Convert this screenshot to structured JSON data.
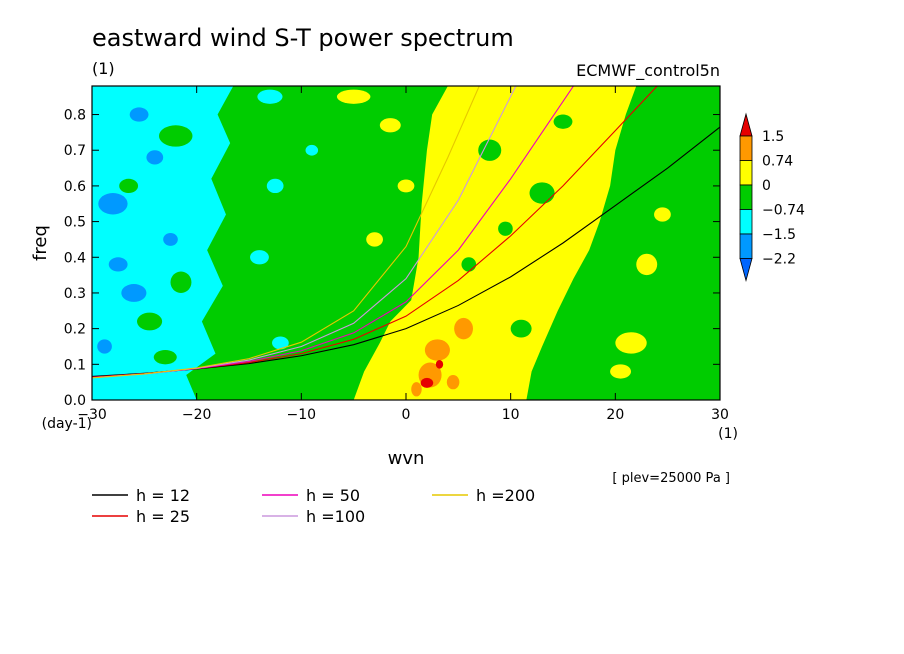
{
  "chart_data": {
    "type": "heatmap",
    "title": "eastward wind S-T power spectrum",
    "subtitle": "(1)",
    "source_label": "ECMWF_control5n",
    "xlabel": "wvn",
    "ylabel": "freq",
    "x_unit": "(1)",
    "y_unit": "(day-1)",
    "xlim": [
      -30,
      30
    ],
    "ylim": [
      0,
      0.88
    ],
    "x_ticks": [
      -30,
      -20,
      -10,
      0,
      10,
      20,
      30
    ],
    "y_ticks": [
      0.0,
      0.1,
      0.2,
      0.3,
      0.4,
      0.5,
      0.6,
      0.7,
      0.8
    ],
    "x_tick_labels": [
      "-30",
      "-20",
      "-10",
      "0",
      "10",
      "20",
      "30"
    ],
    "y_tick_labels": [
      "0.0",
      "0.1",
      "0.2",
      "0.3",
      "0.4",
      "0.5",
      "0.6",
      "0.7",
      "0.8"
    ],
    "colorbar": {
      "levels": [
        "1.5",
        "0.74",
        "0",
        "-0.74",
        "-1.5",
        "-2.2"
      ],
      "colors": [
        "#e60000",
        "#ff9900",
        "#ffff00",
        "#00cc00",
        "#00ffff",
        "#0099ff",
        "#0066ff"
      ]
    },
    "field_regions": [
      {
        "level": "-1.5",
        "color": "#00ffff",
        "x_range": [
          -30,
          -17.5
        ],
        "y_range": [
          0,
          0.88
        ]
      },
      {
        "level": "-0.74",
        "color": "#00cc00",
        "x_range": [
          -17.5,
          -3
        ],
        "y_range": [
          0,
          0.88
        ]
      },
      {
        "level": "0",
        "color": "#ffff00",
        "x_range": [
          -3,
          24
        ],
        "y_range": [
          0,
          0.88
        ]
      },
      {
        "level": "0.74",
        "color": "#ff9900",
        "x_range": [
          1,
          5
        ],
        "y_range": [
          0.03,
          0.23
        ]
      },
      {
        "level": "1.5",
        "color": "#e60000",
        "x_range": [
          1.6,
          3.3
        ],
        "y_range": [
          0.03,
          0.1
        ]
      }
    ],
    "annotation": "[ plev=25000 Pa ]",
    "series": [
      {
        "name": "h = 12",
        "color": "#000000",
        "x": [
          -30,
          -25,
          -20,
          -15,
          -10,
          -5,
          0,
          5,
          10,
          15,
          20,
          25,
          30
        ],
        "y": [
          0.066,
          0.075,
          0.087,
          0.102,
          0.124,
          0.155,
          0.2,
          0.265,
          0.345,
          0.44,
          0.545,
          0.65,
          0.765
        ]
      },
      {
        "name": "h = 25",
        "color": "#e60000",
        "x": [
          -30,
          -25,
          -20,
          -15,
          -10,
          -5,
          0,
          5,
          10,
          15,
          20,
          24
        ],
        "y": [
          0.064,
          0.074,
          0.088,
          0.105,
          0.13,
          0.17,
          0.235,
          0.335,
          0.46,
          0.6,
          0.755,
          0.88
        ]
      },
      {
        "name": "h = 50",
        "color": "#ee00bb",
        "x": [
          -30,
          -25,
          -20,
          -15,
          -10,
          -5,
          0,
          5,
          10,
          16
        ],
        "y": [
          0.063,
          0.073,
          0.088,
          0.108,
          0.138,
          0.188,
          0.275,
          0.42,
          0.62,
          0.88
        ]
      },
      {
        "name": "h =100",
        "color": "#cc99dd",
        "x": [
          -30,
          -25,
          -20,
          -15,
          -10,
          -5,
          0,
          5,
          10.5
        ],
        "y": [
          0.062,
          0.073,
          0.089,
          0.112,
          0.15,
          0.215,
          0.34,
          0.56,
          0.88
        ]
      },
      {
        "name": "h =200",
        "color": "#e6c800",
        "x": [
          -30,
          -25,
          -20,
          -15,
          -10,
          -5,
          0,
          4,
          7
        ],
        "y": [
          0.062,
          0.073,
          0.09,
          0.116,
          0.162,
          0.25,
          0.43,
          0.68,
          0.88
        ]
      }
    ]
  }
}
